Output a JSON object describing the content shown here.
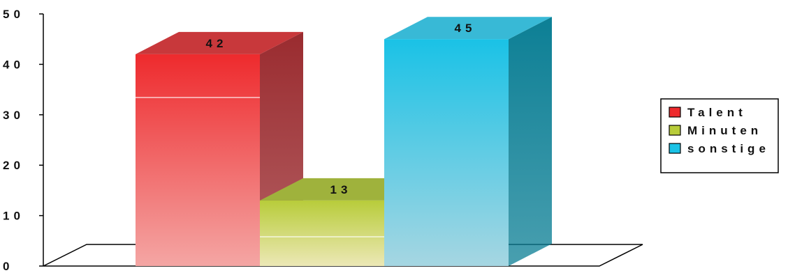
{
  "chart_data": {
    "type": "bar",
    "categories": [
      "Talent",
      "Minuten",
      "sonstige"
    ],
    "values": [
      42,
      13,
      45
    ],
    "data_labels": [
      "42",
      "13",
      "45"
    ],
    "title": "",
    "xlabel": "",
    "ylabel": "",
    "ylim": [
      0,
      50
    ],
    "y_ticks": [
      "0",
      "10",
      "20",
      "30",
      "40",
      "50"
    ],
    "legend": {
      "placement": "right",
      "entries": [
        "Talent",
        "Minuten",
        "sonstige"
      ]
    },
    "colors": {
      "Talent": {
        "top": "#ee2a2d",
        "bottom": "#f4a6a4",
        "side": "#9a2b2f",
        "cap": "#c8383b"
      },
      "Minuten": {
        "top": "#b8cc3a",
        "bottom": "#ece8b6",
        "side": "#8c9a2a",
        "cap": "#9fb23c"
      },
      "sonstige": {
        "top": "#1ac2e6",
        "bottom": "#a6d6e2",
        "side": "#0c7f95",
        "cap": "#38b9d6"
      }
    },
    "grid": false,
    "three_d": true
  }
}
